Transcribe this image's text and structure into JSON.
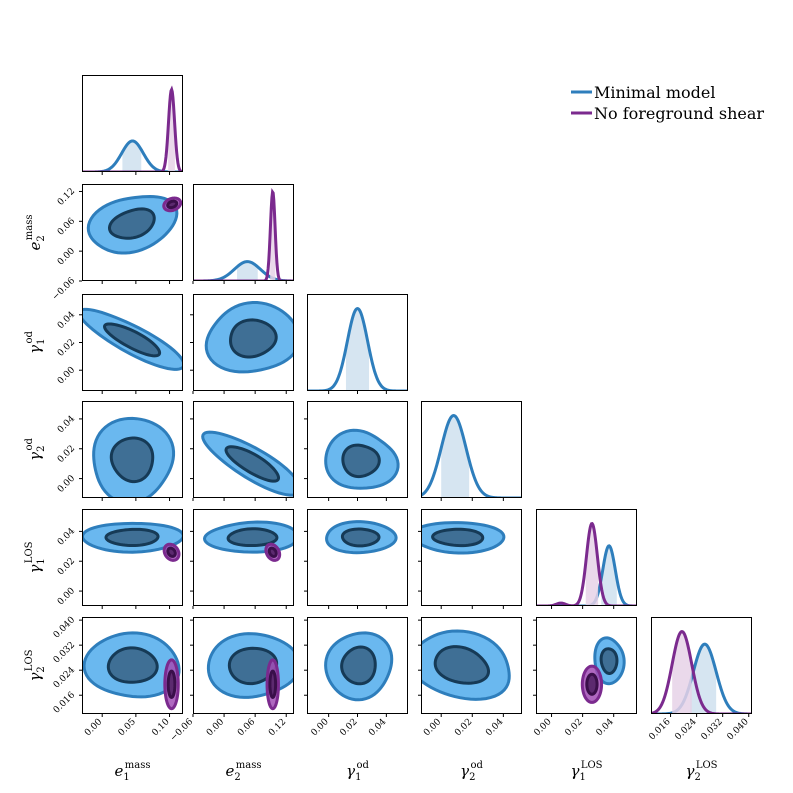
{
  "chart_data": {
    "type": "corner",
    "title": "",
    "legend": {
      "placement": "top-right",
      "entries": [
        {
          "label": "Minimal model",
          "color": "#2e7ebc"
        },
        {
          "label": "No foreground shear",
          "color": "#7b2a8e"
        }
      ]
    },
    "colors": {
      "minimal_line": "#2e7ebc",
      "minimal_fill_outer": "#6ab8ef",
      "minimal_fill_inner": "#3f6f95",
      "minimal_inner_edge": "#163a56",
      "minimal_band": "#cfe0ef",
      "nofg_line": "#7b2a8e",
      "nofg_fill_outer": "#a14eb5",
      "nofg_fill_inner": "#5c2a6f",
      "nofg_inner_edge": "#3a0f4a",
      "nofg_band": "#e6d2e8"
    },
    "parameters": [
      {
        "key": "e1",
        "symbol": "e",
        "sub": "1",
        "sup": "mass",
        "range": [
          -0.03,
          0.12
        ],
        "ticks": [
          "0.00",
          "0.05",
          "0.10"
        ],
        "tick_values": [
          0.0,
          0.05,
          0.1
        ]
      },
      {
        "key": "e2",
        "symbol": "e",
        "sub": "2",
        "sup": "mass",
        "range": [
          -0.06,
          0.135
        ],
        "ticks": [
          "−0.06",
          "0.00",
          "0.06",
          "0.12"
        ],
        "tick_values": [
          -0.06,
          0.0,
          0.06,
          0.12
        ]
      },
      {
        "key": "g1od",
        "symbol": "γ",
        "sub": "1",
        "sup": "od",
        "range": [
          -0.015,
          0.055
        ],
        "ticks": [
          "0.00",
          "0.02",
          "0.04"
        ],
        "tick_values": [
          0.0,
          0.02,
          0.04
        ]
      },
      {
        "key": "g2od",
        "symbol": "γ",
        "sub": "2",
        "sup": "od",
        "range": [
          -0.013,
          0.052
        ],
        "ticks": [
          "0.00",
          "0.02",
          "0.04"
        ],
        "tick_values": [
          0.0,
          0.02,
          0.04
        ]
      },
      {
        "key": "g1los",
        "symbol": "γ",
        "sub": "1",
        "sup": "LOS",
        "range": [
          -0.01,
          0.055
        ],
        "ticks": [
          "0.00",
          "0.02",
          "0.04"
        ],
        "tick_values": [
          0.0,
          0.02,
          0.04
        ]
      },
      {
        "key": "g2los",
        "symbol": "γ",
        "sub": "2",
        "sup": "LOS",
        "range": [
          0.01,
          0.041
        ],
        "ticks": [
          "0.016",
          "0.024",
          "0.032",
          "0.040"
        ],
        "tick_values": [
          0.016,
          0.024,
          0.032,
          0.04
        ]
      }
    ],
    "marginals": {
      "minimal": [
        {
          "mean": 0.045,
          "sd": 0.016,
          "band": [
            0.03,
            0.058
          ],
          "peak": 0.32
        },
        {
          "mean": 0.045,
          "sd": 0.025,
          "band": [
            0.025,
            0.065
          ],
          "peak": 0.2
        },
        {
          "mean": 0.02,
          "sd": 0.007,
          "band": [
            0.012,
            0.028
          ],
          "peak": 0.85
        },
        {
          "mean": 0.008,
          "sd": 0.008,
          "band": [
            0.0,
            0.018
          ],
          "peak": 0.85
        },
        {
          "mean": 0.037,
          "sd": 0.004,
          "band": [
            0.032,
            0.042
          ],
          "peak": 0.62
        },
        {
          "mean": 0.0265,
          "sd": 0.0035,
          "band": [
            0.022,
            0.03
          ],
          "peak": 0.72
        }
      ],
      "nofg": [
        {
          "mean": 0.103,
          "sd": 0.0045,
          "band": [
            0.098,
            0.108
          ],
          "peak": 0.85
        },
        {
          "mean": 0.094,
          "sd": 0.0045,
          "band": [
            0.089,
            0.099
          ],
          "peak": 0.92
        },
        null,
        null,
        {
          "mean": 0.026,
          "sd": 0.0035,
          "band": [
            0.022,
            0.03
          ],
          "peak": 0.85,
          "tail": {
            "at": 0.006,
            "height": 0.03,
            "sd": 0.003
          }
        },
        {
          "mean": 0.0195,
          "sd": 0.003,
          "band": [
            0.0165,
            0.0225
          ],
          "peak": 0.85
        }
      ]
    },
    "contours": {
      "minimal": [
        {
          "pair": [
            0,
            1
          ],
          "center": [
            0.045,
            0.055
          ],
          "r1": [
            0.065,
            0.055
          ],
          "r2": [
            0.033,
            0.028
          ],
          "angle": 20,
          "wobble": 0.1
        },
        {
          "pair": [
            0,
            2
          ],
          "center": [
            0.045,
            0.022
          ],
          "r1": [
            0.085,
            0.01
          ],
          "r2": [
            0.045,
            0.006
          ],
          "angle": -28,
          "wobble": 0.05
        },
        {
          "pair": [
            1,
            2
          ],
          "center": [
            0.055,
            0.023
          ],
          "r1": [
            0.088,
            0.025
          ],
          "r2": [
            0.045,
            0.013
          ],
          "angle": 0,
          "wobble": 0.1
        },
        {
          "pair": [
            0,
            3
          ],
          "center": [
            0.045,
            0.013
          ],
          "r1": [
            0.062,
            0.027
          ],
          "r2": [
            0.032,
            0.014
          ],
          "angle": 0,
          "wobble": 0.1
        },
        {
          "pair": [
            1,
            3
          ],
          "center": [
            0.055,
            0.01
          ],
          "r1": [
            0.11,
            0.01
          ],
          "r2": [
            0.058,
            0.006
          ],
          "angle": -30,
          "wobble": 0.05
        },
        {
          "pair": [
            2,
            3
          ],
          "center": [
            0.022,
            0.012
          ],
          "r1": [
            0.024,
            0.02
          ],
          "r2": [
            0.012,
            0.011
          ],
          "angle": 0,
          "wobble": 0.12
        },
        {
          "pair": [
            0,
            4
          ],
          "center": [
            0.045,
            0.036
          ],
          "r1": [
            0.072,
            0.01
          ],
          "r2": [
            0.038,
            0.0055
          ],
          "angle": 0,
          "wobble": 0.07
        },
        {
          "pair": [
            1,
            4
          ],
          "center": [
            0.055,
            0.036
          ],
          "r1": [
            0.09,
            0.01
          ],
          "r2": [
            0.048,
            0.0055
          ],
          "angle": 0,
          "wobble": 0.07
        },
        {
          "pair": [
            2,
            4
          ],
          "center": [
            0.022,
            0.036
          ],
          "r1": [
            0.025,
            0.01
          ],
          "r2": [
            0.013,
            0.0055
          ],
          "angle": 0,
          "wobble": 0.07
        },
        {
          "pair": [
            3,
            4
          ],
          "center": [
            0.011,
            0.036
          ],
          "r1": [
            0.03,
            0.01
          ],
          "r2": [
            0.016,
            0.0055
          ],
          "angle": 0,
          "wobble": 0.07
        },
        {
          "pair": [
            0,
            5
          ],
          "center": [
            0.045,
            0.0255
          ],
          "r1": [
            0.068,
            0.0105
          ],
          "r2": [
            0.035,
            0.0057
          ],
          "angle": 0,
          "wobble": 0.08
        },
        {
          "pair": [
            1,
            5
          ],
          "center": [
            0.055,
            0.0255
          ],
          "r1": [
            0.085,
            0.0105
          ],
          "r2": [
            0.045,
            0.0057
          ],
          "angle": 0,
          "wobble": 0.08
        },
        {
          "pair": [
            2,
            5
          ],
          "center": [
            0.021,
            0.0255
          ],
          "r1": [
            0.023,
            0.0105
          ],
          "r2": [
            0.012,
            0.0057
          ],
          "angle": 0,
          "wobble": 0.08
        },
        {
          "pair": [
            3,
            5
          ],
          "center": [
            0.013,
            0.0255
          ],
          "r1": [
            0.034,
            0.01
          ],
          "r2": [
            0.018,
            0.0054
          ],
          "angle": -12,
          "wobble": 0.1
        },
        {
          "pair": [
            4,
            5
          ],
          "center": [
            0.037,
            0.027
          ],
          "r1": [
            0.0095,
            0.0072
          ],
          "r2": [
            0.005,
            0.004
          ],
          "angle": 0,
          "wobble": 0.08
        }
      ],
      "nofg": [
        {
          "pair": [
            0,
            1
          ],
          "center": [
            0.104,
            0.094
          ],
          "r1": [
            0.013,
            0.012
          ],
          "r2": [
            0.007,
            0.006
          ],
          "angle": 20,
          "wobble": 0.0
        },
        {
          "pair": [
            0,
            4
          ],
          "center": [
            0.103,
            0.026
          ],
          "r1": [
            0.01,
            0.0058
          ],
          "r2": [
            0.005,
            0.003
          ],
          "angle": 35,
          "wobble": 0.0
        },
        {
          "pair": [
            1,
            4
          ],
          "center": [
            0.094,
            0.026
          ],
          "r1": [
            0.012,
            0.0058
          ],
          "r2": [
            0.006,
            0.003
          ],
          "angle": 30,
          "wobble": 0.0
        },
        {
          "pair": [
            0,
            5
          ],
          "center": [
            0.103,
            0.0195
          ],
          "r1": [
            0.01,
            0.0078
          ],
          "r2": [
            0.005,
            0.0042
          ],
          "angle": 0,
          "wobble": 0.0
        },
        {
          "pair": [
            1,
            5
          ],
          "center": [
            0.094,
            0.0195
          ],
          "r1": [
            0.011,
            0.0078
          ],
          "r2": [
            0.0055,
            0.0042
          ],
          "angle": 0,
          "wobble": 0.0
        },
        {
          "pair": [
            4,
            5
          ],
          "center": [
            0.026,
            0.0195
          ],
          "r1": [
            0.0062,
            0.0058
          ],
          "r2": [
            0.0033,
            0.0032
          ],
          "angle": 0,
          "wobble": 0.0
        }
      ]
    }
  }
}
